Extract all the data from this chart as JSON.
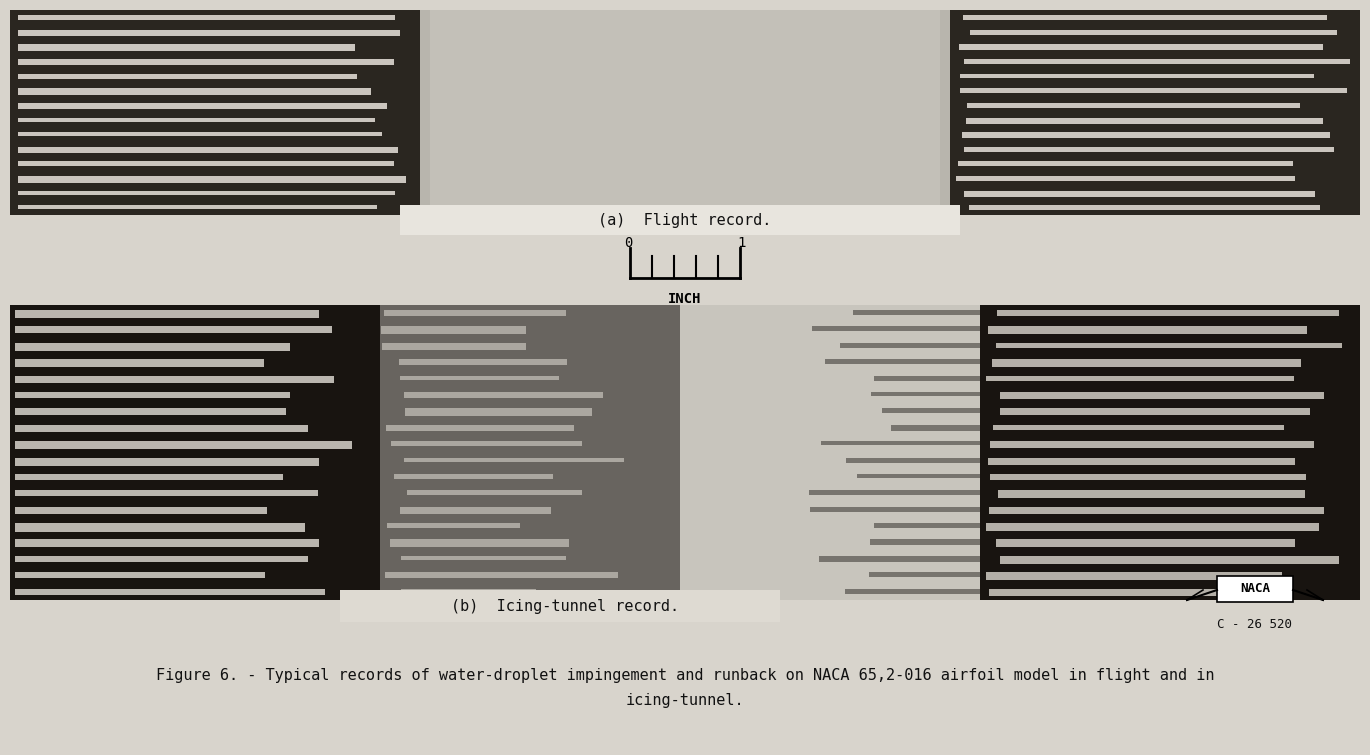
{
  "background_color": "#d8d4cc",
  "fig_width": 13.7,
  "fig_height": 7.55,
  "panel_a_label": "(a)  Flight record.",
  "panel_b_label": "(b)  Icing-tunnel record.",
  "caption_line1": "Figure 6. - Typical records of water-droplet impingement and runback on NACA 65,2-016 airfoil model in flight and in",
  "caption_line2": "icing-tunnel.",
  "naca_label": "NACA",
  "catalog_label": "C - 26 520",
  "scale_label": "INCH",
  "panel_a_bg": "#b8b5ad",
  "panel_a_center_bg": "#c8c5be",
  "panel_a_dark": "#2a2620",
  "panel_a_stripe_light": "#ddd8d0",
  "panel_b_bg": "#c0bdb5",
  "panel_b_center_bg": "#cecbc3",
  "panel_b_dark": "#181410",
  "panel_b_stripe_light": "#d8d4cc",
  "label_box_a_bg": "#e8e5de",
  "label_box_b_bg": "#dedad2"
}
